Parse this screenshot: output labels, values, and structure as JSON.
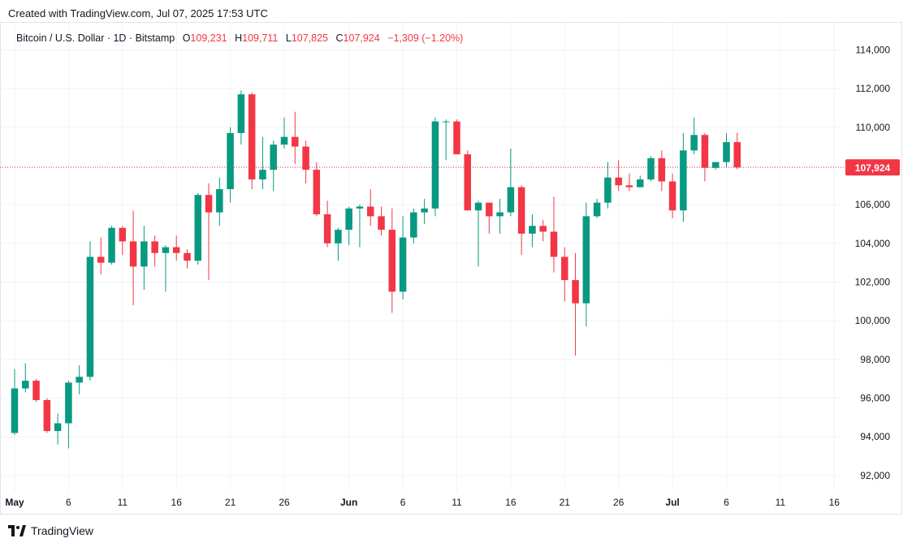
{
  "header": {
    "created_text": "Created with TradingView.com, Jul 07, 2025 17:53 UTC"
  },
  "legend": {
    "symbol": "Bitcoin / U.S. Dollar · 1D · Bitstamp",
    "o_label": "O",
    "o_value": "109,231",
    "h_label": "H",
    "h_value": "109,711",
    "l_label": "L",
    "l_value": "107,825",
    "c_label": "C",
    "c_value": "107,924",
    "change": "−1,309 (−1.20%)"
  },
  "footer": {
    "brand": "TradingView"
  },
  "colors": {
    "up": "#089981",
    "down": "#f23645",
    "grid": "#f0f3fa",
    "axis_text": "#131722"
  },
  "chart_data": {
    "type": "candlestick",
    "title": "Bitcoin / U.S. Dollar · 1D · Bitstamp",
    "x_labels": [
      {
        "label": "May",
        "date": "2025-05-01"
      },
      {
        "label": "6",
        "date": "2025-05-06"
      },
      {
        "label": "11",
        "date": "2025-05-11"
      },
      {
        "label": "16",
        "date": "2025-05-16"
      },
      {
        "label": "21",
        "date": "2025-05-21"
      },
      {
        "label": "26",
        "date": "2025-05-26"
      },
      {
        "label": "Jun",
        "date": "2025-06-01"
      },
      {
        "label": "6",
        "date": "2025-06-06"
      },
      {
        "label": "11",
        "date": "2025-06-11"
      },
      {
        "label": "16",
        "date": "2025-06-16"
      },
      {
        "label": "21",
        "date": "2025-06-21"
      },
      {
        "label": "26",
        "date": "2025-06-26"
      },
      {
        "label": "Jul",
        "date": "2025-07-01"
      },
      {
        "label": "6",
        "date": "2025-07-06"
      },
      {
        "label": "11",
        "date": "2025-07-11"
      },
      {
        "label": "16",
        "date": "2025-07-16"
      }
    ],
    "y_ticks": [
      "114,000",
      "112,000",
      "110,000",
      "108,000",
      "106,000",
      "104,000",
      "102,000",
      "100,000",
      "98,000",
      "96,000",
      "94,000",
      "92,000"
    ],
    "y_tick_values": [
      114000,
      112000,
      110000,
      108000,
      106000,
      104000,
      102000,
      100000,
      98000,
      96000,
      94000,
      92000
    ],
    "ylim": [
      91200,
      115400
    ],
    "last_price": {
      "value": 107924,
      "label": "107,924"
    },
    "candles": [
      {
        "date": "2025-05-01",
        "o": 94200,
        "h": 97500,
        "l": 94100,
        "c": 96500
      },
      {
        "date": "2025-05-02",
        "o": 96500,
        "h": 97800,
        "l": 96300,
        "c": 96900
      },
      {
        "date": "2025-05-03",
        "o": 96900,
        "h": 97000,
        "l": 95800,
        "c": 95900
      },
      {
        "date": "2025-05-04",
        "o": 95900,
        "h": 96000,
        "l": 94200,
        "c": 94300
      },
      {
        "date": "2025-05-05",
        "o": 94300,
        "h": 95200,
        "l": 93600,
        "c": 94700
      },
      {
        "date": "2025-05-06",
        "o": 94700,
        "h": 96900,
        "l": 93400,
        "c": 96800
      },
      {
        "date": "2025-05-07",
        "o": 96800,
        "h": 97700,
        "l": 96200,
        "c": 97100
      },
      {
        "date": "2025-05-08",
        "o": 97100,
        "h": 104100,
        "l": 96900,
        "c": 103300
      },
      {
        "date": "2025-05-09",
        "o": 103300,
        "h": 104300,
        "l": 102400,
        "c": 103000
      },
      {
        "date": "2025-05-10",
        "o": 103000,
        "h": 104900,
        "l": 102900,
        "c": 104800
      },
      {
        "date": "2025-05-11",
        "o": 104800,
        "h": 104900,
        "l": 103400,
        "c": 104100
      },
      {
        "date": "2025-05-12",
        "o": 104100,
        "h": 105700,
        "l": 100800,
        "c": 102800
      },
      {
        "date": "2025-05-13",
        "o": 102800,
        "h": 104900,
        "l": 101600,
        "c": 104100
      },
      {
        "date": "2025-05-14",
        "o": 104100,
        "h": 104400,
        "l": 102800,
        "c": 103500
      },
      {
        "date": "2025-05-15",
        "o": 103500,
        "h": 103900,
        "l": 101500,
        "c": 103800
      },
      {
        "date": "2025-05-16",
        "o": 103800,
        "h": 104400,
        "l": 103100,
        "c": 103500
      },
      {
        "date": "2025-05-17",
        "o": 103500,
        "h": 103700,
        "l": 102700,
        "c": 103100
      },
      {
        "date": "2025-05-18",
        "o": 103100,
        "h": 106600,
        "l": 102900,
        "c": 106500
      },
      {
        "date": "2025-05-19",
        "o": 106500,
        "h": 107100,
        "l": 102100,
        "c": 105600
      },
      {
        "date": "2025-05-20",
        "o": 105600,
        "h": 107400,
        "l": 104900,
        "c": 106800
      },
      {
        "date": "2025-05-21",
        "o": 106800,
        "h": 110000,
        "l": 106100,
        "c": 109700
      },
      {
        "date": "2025-05-22",
        "o": 109700,
        "h": 111900,
        "l": 109100,
        "c": 111700
      },
      {
        "date": "2025-05-23",
        "o": 111700,
        "h": 111800,
        "l": 106800,
        "c": 107300
      },
      {
        "date": "2025-05-24",
        "o": 107300,
        "h": 109500,
        "l": 106800,
        "c": 107800
      },
      {
        "date": "2025-05-25",
        "o": 107800,
        "h": 109300,
        "l": 106700,
        "c": 109100
      },
      {
        "date": "2025-05-26",
        "o": 109100,
        "h": 110500,
        "l": 108900,
        "c": 109500
      },
      {
        "date": "2025-05-27",
        "o": 109500,
        "h": 110800,
        "l": 108100,
        "c": 109000
      },
      {
        "date": "2025-05-28",
        "o": 109000,
        "h": 109300,
        "l": 107100,
        "c": 107800
      },
      {
        "date": "2025-05-29",
        "o": 107800,
        "h": 108200,
        "l": 105400,
        "c": 105500
      },
      {
        "date": "2025-05-30",
        "o": 105500,
        "h": 106200,
        "l": 103800,
        "c": 104000
      },
      {
        "date": "2025-05-31",
        "o": 104000,
        "h": 104800,
        "l": 103100,
        "c": 104700
      },
      {
        "date": "2025-06-01",
        "o": 104700,
        "h": 105900,
        "l": 103900,
        "c": 105800
      },
      {
        "date": "2025-06-02",
        "o": 105800,
        "h": 106000,
        "l": 103800,
        "c": 105900
      },
      {
        "date": "2025-06-03",
        "o": 105900,
        "h": 106800,
        "l": 104900,
        "c": 105400
      },
      {
        "date": "2025-06-04",
        "o": 105400,
        "h": 105900,
        "l": 104400,
        "c": 104700
      },
      {
        "date": "2025-06-05",
        "o": 104700,
        "h": 105800,
        "l": 100400,
        "c": 101500
      },
      {
        "date": "2025-06-06",
        "o": 101500,
        "h": 105400,
        "l": 101100,
        "c": 104300
      },
      {
        "date": "2025-06-07",
        "o": 104300,
        "h": 105800,
        "l": 104000,
        "c": 105600
      },
      {
        "date": "2025-06-08",
        "o": 105600,
        "h": 106300,
        "l": 105000,
        "c": 105800
      },
      {
        "date": "2025-06-09",
        "o": 105800,
        "h": 110500,
        "l": 105400,
        "c": 110300
      },
      {
        "date": "2025-06-10",
        "o": 110300,
        "h": 110400,
        "l": 108300,
        "c": 110300
      },
      {
        "date": "2025-06-11",
        "o": 110300,
        "h": 110400,
        "l": 108600,
        "c": 108600
      },
      {
        "date": "2025-06-12",
        "o": 108600,
        "h": 108800,
        "l": 105700,
        "c": 105700
      },
      {
        "date": "2025-06-13",
        "o": 105700,
        "h": 106200,
        "l": 102800,
        "c": 106100
      },
      {
        "date": "2025-06-14",
        "o": 106100,
        "h": 106100,
        "l": 104500,
        "c": 105400
      },
      {
        "date": "2025-06-15",
        "o": 105400,
        "h": 106300,
        "l": 104500,
        "c": 105600
      },
      {
        "date": "2025-06-16",
        "o": 105600,
        "h": 108900,
        "l": 105400,
        "c": 106900
      },
      {
        "date": "2025-06-17",
        "o": 106900,
        "h": 107000,
        "l": 103400,
        "c": 104500
      },
      {
        "date": "2025-06-18",
        "o": 104500,
        "h": 105500,
        "l": 103800,
        "c": 104900
      },
      {
        "date": "2025-06-19",
        "o": 104900,
        "h": 105200,
        "l": 104100,
        "c": 104600
      },
      {
        "date": "2025-06-20",
        "o": 104600,
        "h": 106400,
        "l": 102500,
        "c": 103300
      },
      {
        "date": "2025-06-21",
        "o": 103300,
        "h": 103800,
        "l": 101000,
        "c": 102100
      },
      {
        "date": "2025-06-22",
        "o": 102100,
        "h": 103500,
        "l": 98200,
        "c": 100900
      },
      {
        "date": "2025-06-23",
        "o": 100900,
        "h": 106100,
        "l": 99700,
        "c": 105400
      },
      {
        "date": "2025-06-24",
        "o": 105400,
        "h": 106300,
        "l": 105300,
        "c": 106100
      },
      {
        "date": "2025-06-25",
        "o": 106100,
        "h": 108200,
        "l": 105800,
        "c": 107400
      },
      {
        "date": "2025-06-26",
        "o": 107400,
        "h": 108300,
        "l": 106700,
        "c": 107000
      },
      {
        "date": "2025-06-27",
        "o": 107000,
        "h": 107600,
        "l": 106700,
        "c": 106900
      },
      {
        "date": "2025-06-28",
        "o": 106900,
        "h": 107500,
        "l": 106900,
        "c": 107300
      },
      {
        "date": "2025-06-29",
        "o": 107300,
        "h": 108500,
        "l": 107200,
        "c": 108400
      },
      {
        "date": "2025-06-30",
        "o": 108400,
        "h": 108800,
        "l": 106700,
        "c": 107200
      },
      {
        "date": "2025-07-01",
        "o": 107200,
        "h": 107600,
        "l": 105300,
        "c": 105700
      },
      {
        "date": "2025-07-02",
        "o": 105700,
        "h": 109700,
        "l": 105100,
        "c": 108800
      },
      {
        "date": "2025-07-03",
        "o": 108800,
        "h": 110500,
        "l": 108600,
        "c": 109600
      },
      {
        "date": "2025-07-04",
        "o": 109600,
        "h": 109700,
        "l": 107200,
        "c": 107900
      },
      {
        "date": "2025-07-05",
        "o": 107900,
        "h": 108200,
        "l": 107800,
        "c": 108200
      },
      {
        "date": "2025-07-06",
        "o": 108200,
        "h": 109700,
        "l": 107900,
        "c": 109231
      },
      {
        "date": "2025-07-07",
        "o": 109231,
        "h": 109711,
        "l": 107825,
        "c": 107924
      }
    ]
  }
}
